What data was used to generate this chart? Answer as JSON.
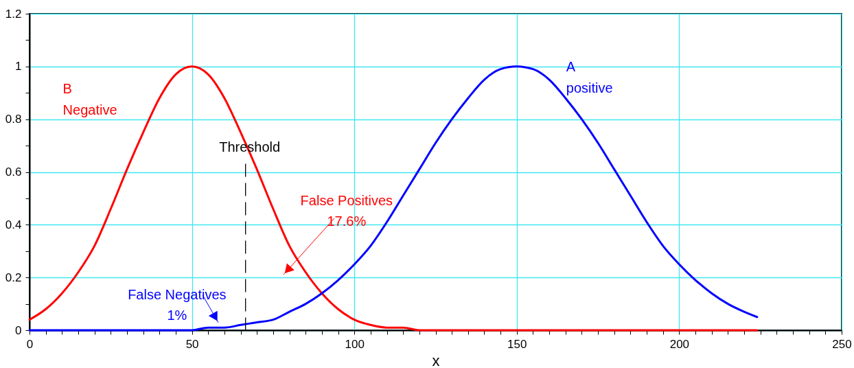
{
  "chart_data": {
    "type": "line",
    "xlabel": "x",
    "grid": true,
    "legend": false,
    "marker": "none",
    "xlim": [
      0,
      250
    ],
    "ylim": [
      0,
      1.2
    ],
    "xticks": [
      0,
      {
        "value": 5,
        "label": null
      },
      {
        "value": 10,
        "label": null
      },
      {
        "value": 15,
        "label": null
      },
      {
        "value": 20,
        "label": null
      },
      {
        "value": 25,
        "label": null
      },
      {
        "value": 30,
        "label": null
      },
      {
        "value": 35,
        "label": null
      },
      {
        "value": 40,
        "label": null
      },
      {
        "value": 45,
        "label": null
      },
      50,
      {
        "value": 55,
        "label": null
      },
      {
        "value": 60,
        "label": null
      },
      {
        "value": 65,
        "label": null
      },
      {
        "value": 70,
        "label": null
      },
      {
        "value": 75,
        "label": null
      },
      {
        "value": 80,
        "label": null
      },
      {
        "value": 85,
        "label": null
      },
      {
        "value": 90,
        "label": null
      },
      {
        "value": 95,
        "label": null
      },
      100,
      {
        "value": 105,
        "label": null
      },
      {
        "value": 110,
        "label": null
      },
      {
        "value": 115,
        "label": null
      },
      {
        "value": 120,
        "label": null
      },
      {
        "value": 125,
        "label": null
      },
      {
        "value": 130,
        "label": null
      },
      {
        "value": 135,
        "label": null
      },
      {
        "value": 140,
        "label": null
      },
      {
        "value": 145,
        "label": null
      },
      150,
      {
        "value": 155,
        "label": null
      },
      {
        "value": 160,
        "label": null
      },
      {
        "value": 165,
        "label": null
      },
      {
        "value": 170,
        "label": null
      },
      {
        "value": 175,
        "label": null
      },
      {
        "value": 180,
        "label": null
      },
      {
        "value": 185,
        "label": null
      },
      {
        "value": 190,
        "label": null
      },
      {
        "value": 195,
        "label": null
      },
      200,
      {
        "value": 205,
        "label": null
      },
      {
        "value": 210,
        "label": null
      },
      {
        "value": 215,
        "label": null
      },
      {
        "value": 220,
        "label": null
      },
      {
        "value": 225,
        "label": null
      },
      {
        "value": 230,
        "label": null
      },
      {
        "value": 235,
        "label": null
      },
      {
        "value": 240,
        "label": null
      },
      {
        "value": 245,
        "label": null
      },
      250
    ],
    "yticks": [
      0,
      {
        "value": 0.1,
        "label": null
      },
      0.2,
      {
        "value": 0.3,
        "label": null
      },
      0.4,
      {
        "value": 0.5,
        "label": null
      },
      0.6,
      {
        "value": 0.7,
        "label": null
      },
      0.8,
      {
        "value": 0.9,
        "label": null
      },
      1,
      {
        "value": 1.1,
        "label": null
      },
      1.2
    ],
    "x": [
      0,
      5,
      10,
      15,
      20,
      25,
      30,
      35,
      40,
      45,
      50,
      55,
      60,
      65,
      70,
      75,
      80,
      85,
      90,
      95,
      100,
      105,
      110,
      115,
      120,
      125,
      130,
      135,
      140,
      145,
      150,
      155,
      160,
      165,
      170,
      175,
      180,
      185,
      190,
      195,
      200,
      205,
      210,
      215,
      220,
      224
    ],
    "series": [
      {
        "name": "B\nNegative",
        "color": "#ff0000",
        "values": [
          0.04,
          0.08,
          0.14,
          0.22,
          0.32,
          0.46,
          0.61,
          0.75,
          0.88,
          0.97,
          1,
          0.97,
          0.88,
          0.75,
          0.61,
          0.46,
          0.32,
          0.22,
          0.14,
          0.08,
          0.04,
          0.02,
          0.01,
          0.01,
          0,
          0,
          0,
          0,
          0,
          0,
          0,
          0,
          0,
          0,
          0,
          0,
          0,
          0,
          0,
          0,
          0,
          0,
          0,
          0,
          0,
          0
        ]
      },
      {
        "name": "A\npositive",
        "color": "#0000ff",
        "values": [
          0,
          0,
          0,
          0,
          0,
          0,
          0,
          0,
          0,
          0,
          0,
          0.01,
          0.01,
          0.02,
          0.03,
          0.04,
          0.07,
          0.1,
          0.14,
          0.19,
          0.25,
          0.32,
          0.41,
          0.51,
          0.61,
          0.71,
          0.8,
          0.88,
          0.95,
          0.99,
          1,
          0.99,
          0.95,
          0.88,
          0.8,
          0.71,
          0.61,
          0.51,
          0.41,
          0.32,
          0.25,
          0.19,
          0.14,
          0.1,
          0.07,
          0.05
        ]
      },
      {
        "name": "Threshold",
        "color": "#000000",
        "line_style": "dashed",
        "x": [
          66.5,
          66.5
        ],
        "values": [
          0,
          0.63
        ]
      }
    ],
    "annotations": [
      "False Positives\n17.6%",
      "False Negatives\n1%"
    ]
  }
}
